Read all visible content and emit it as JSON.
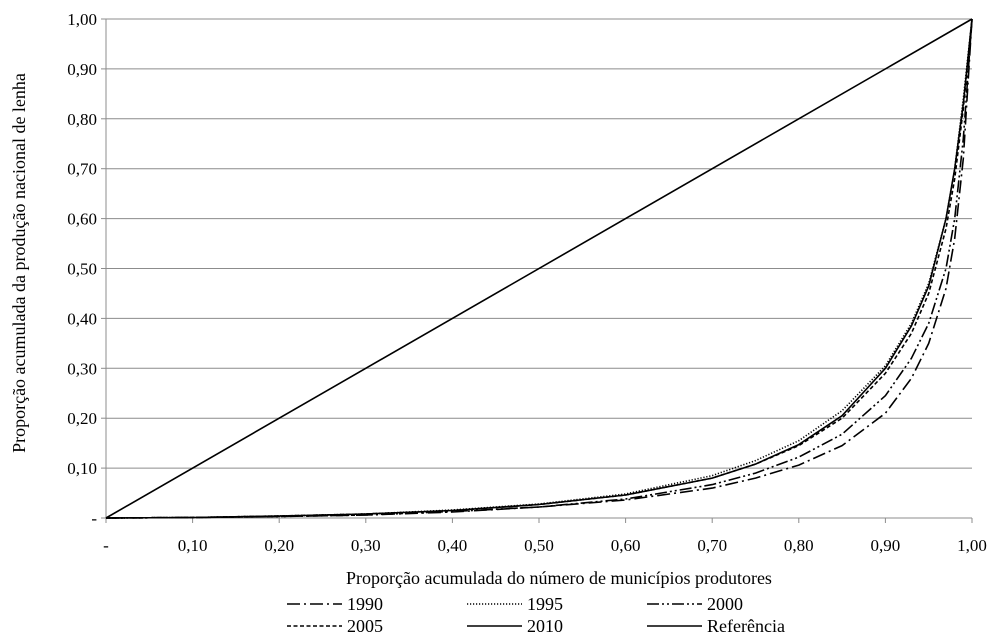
{
  "chart_data": {
    "type": "line",
    "title": "",
    "xlabel": "Proporção acumulada do número de municípios produtores",
    "ylabel": "Proporção acumulada da produção nacional de lenha",
    "xlim": [
      0,
      1
    ],
    "ylim": [
      0,
      1
    ],
    "x_ticks": [
      {
        "value": 0,
        "label": "-"
      },
      {
        "value": 0.1,
        "label": "0,10"
      },
      {
        "value": 0.2,
        "label": "0,20"
      },
      {
        "value": 0.3,
        "label": "0,30"
      },
      {
        "value": 0.4,
        "label": "0,40"
      },
      {
        "value": 0.5,
        "label": "0,50"
      },
      {
        "value": 0.6,
        "label": "0,60"
      },
      {
        "value": 0.7,
        "label": "0,70"
      },
      {
        "value": 0.8,
        "label": "0,80"
      },
      {
        "value": 0.9,
        "label": "0,90"
      },
      {
        "value": 1.0,
        "label": "1,00"
      }
    ],
    "y_ticks": [
      {
        "value": 0,
        "label": "-"
      },
      {
        "value": 0.1,
        "label": "0,10"
      },
      {
        "value": 0.2,
        "label": "0,20"
      },
      {
        "value": 0.3,
        "label": "0,30"
      },
      {
        "value": 0.4,
        "label": "0,40"
      },
      {
        "value": 0.5,
        "label": "0,50"
      },
      {
        "value": 0.6,
        "label": "0,60"
      },
      {
        "value": 0.7,
        "label": "0,70"
      },
      {
        "value": 0.8,
        "label": "0,80"
      },
      {
        "value": 0.9,
        "label": "0,90"
      },
      {
        "value": 1.0,
        "label": "1,00"
      }
    ],
    "grid": "horizontal",
    "legend_position": "bottom",
    "series": [
      {
        "name": "1990",
        "dash": "long-dash-dot",
        "x": [
          0,
          0.1,
          0.2,
          0.3,
          0.4,
          0.5,
          0.6,
          0.7,
          0.75,
          0.8,
          0.85,
          0.9,
          0.93,
          0.95,
          0.97,
          0.98,
          0.99,
          1.0
        ],
        "y": [
          0,
          0.001,
          0.003,
          0.006,
          0.012,
          0.022,
          0.036,
          0.06,
          0.08,
          0.106,
          0.145,
          0.21,
          0.28,
          0.35,
          0.46,
          0.56,
          0.72,
          1.0
        ]
      },
      {
        "name": "1995",
        "dash": "dotted",
        "x": [
          0,
          0.1,
          0.2,
          0.3,
          0.4,
          0.5,
          0.6,
          0.7,
          0.75,
          0.8,
          0.85,
          0.9,
          0.93,
          0.95,
          0.97,
          0.98,
          0.99,
          1.0
        ],
        "y": [
          0,
          0.001,
          0.004,
          0.008,
          0.016,
          0.028,
          0.048,
          0.085,
          0.115,
          0.155,
          0.215,
          0.305,
          0.39,
          0.47,
          0.6,
          0.7,
          0.84,
          1.0
        ]
      },
      {
        "name": "2000",
        "dash": "long-dash-dot-dot",
        "x": [
          0,
          0.1,
          0.2,
          0.3,
          0.4,
          0.5,
          0.6,
          0.7,
          0.75,
          0.8,
          0.85,
          0.9,
          0.93,
          0.95,
          0.97,
          0.98,
          0.99,
          1.0
        ],
        "y": [
          0,
          0.001,
          0.003,
          0.006,
          0.013,
          0.022,
          0.038,
          0.067,
          0.09,
          0.122,
          0.168,
          0.245,
          0.32,
          0.39,
          0.5,
          0.6,
          0.76,
          1.0
        ]
      },
      {
        "name": "2005",
        "dash": "short-dash",
        "x": [
          0,
          0.1,
          0.2,
          0.3,
          0.4,
          0.5,
          0.6,
          0.7,
          0.75,
          0.8,
          0.85,
          0.9,
          0.93,
          0.95,
          0.97,
          0.98,
          0.99,
          1.0
        ],
        "y": [
          0,
          0.001,
          0.004,
          0.008,
          0.015,
          0.027,
          0.046,
          0.08,
          0.108,
          0.145,
          0.2,
          0.29,
          0.37,
          0.45,
          0.58,
          0.68,
          0.82,
          1.0
        ]
      },
      {
        "name": "2010",
        "dash": "solid",
        "x": [
          0,
          0.1,
          0.2,
          0.3,
          0.4,
          0.5,
          0.6,
          0.7,
          0.75,
          0.8,
          0.85,
          0.9,
          0.93,
          0.95,
          0.97,
          0.98,
          0.99,
          1.0
        ],
        "y": [
          0,
          0.001,
          0.004,
          0.008,
          0.015,
          0.027,
          0.046,
          0.08,
          0.108,
          0.147,
          0.205,
          0.3,
          0.385,
          0.465,
          0.6,
          0.7,
          0.83,
          1.0
        ]
      },
      {
        "name": "Referência",
        "dash": "solid",
        "x": [
          0,
          1
        ],
        "y": [
          0,
          1
        ]
      }
    ]
  }
}
